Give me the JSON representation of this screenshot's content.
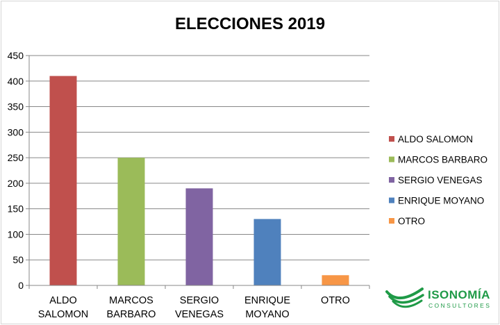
{
  "chart_data": {
    "type": "bar",
    "title": "ELECCIONES 2019",
    "categories": [
      [
        "ALDO",
        "SALOMON"
      ],
      [
        "MARCOS",
        "BARBARO"
      ],
      [
        "SERGIO",
        "VENEGAS"
      ],
      [
        "ENRIQUE",
        "MOYANO"
      ],
      [
        "OTRO"
      ]
    ],
    "values": [
      410,
      250,
      190,
      130,
      20
    ],
    "colors": [
      "#c0504d",
      "#9bbb59",
      "#8064a2",
      "#4f81bd",
      "#f79646"
    ],
    "legend": [
      "ALDO SALOMON",
      "MARCOS BARBARO",
      "SERGIO VENEGAS",
      "ENRIQUE MOYANO",
      "OTRO"
    ],
    "legend_position": "right",
    "yticks": [
      0,
      50,
      100,
      150,
      200,
      250,
      300,
      350,
      400,
      450
    ],
    "ylim": [
      0,
      450
    ],
    "grid": true,
    "xlabel": "",
    "ylabel": ""
  },
  "branding": {
    "name": "ISONOMÍA",
    "subtitle": "CONSULTORES",
    "color": "#1f9a47"
  }
}
